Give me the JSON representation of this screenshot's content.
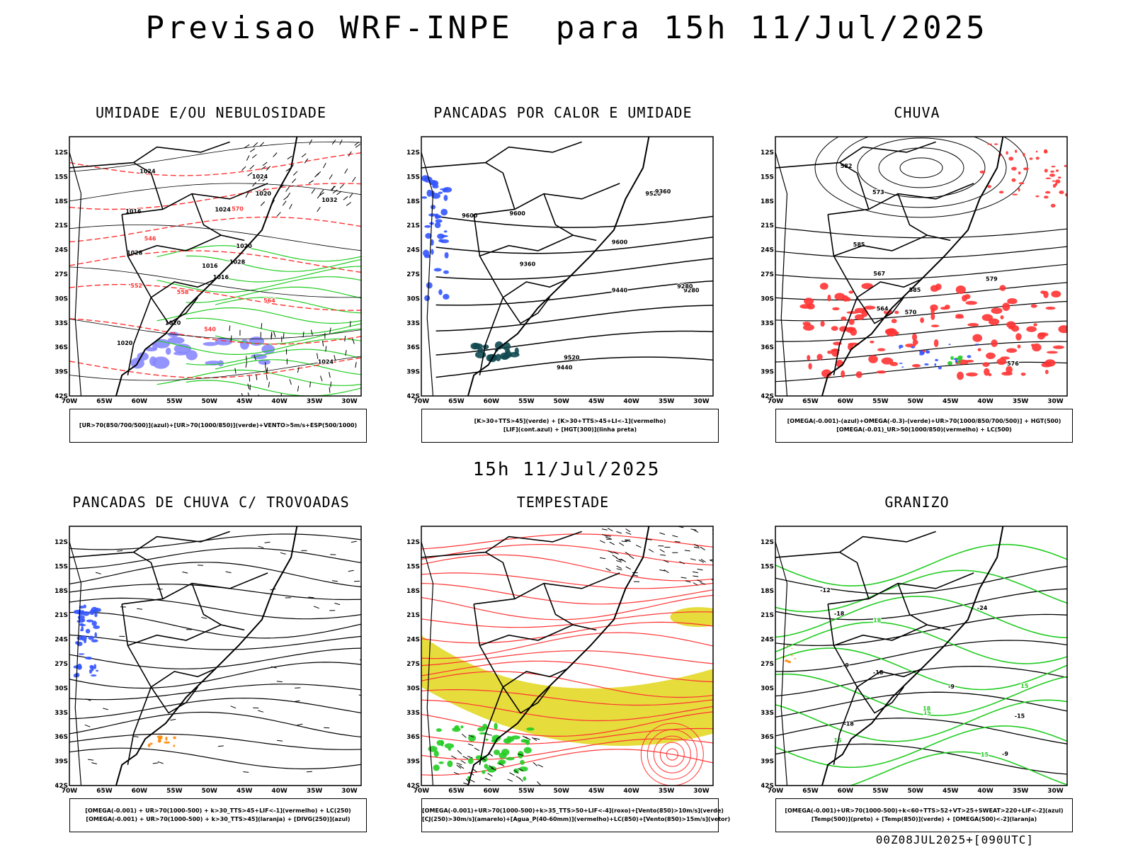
{
  "title": "Previsao WRF-INPE  para 15h 11/Jul/2025",
  "mid_title": "15h 11/Jul/2025",
  "footer": "00Z08JUL2025+[090UTC]",
  "axes": {
    "lat_labels": [
      "12S",
      "15S",
      "18S",
      "21S",
      "24S",
      "27S",
      "30S",
      "33S",
      "36S",
      "39S",
      "42S"
    ],
    "lon_labels": [
      "70W",
      "65W",
      "60W",
      "55W",
      "50W",
      "45W",
      "40W",
      "35W",
      "30W"
    ]
  },
  "colors": {
    "red": "#ff3333",
    "green": "#22cc22",
    "blue": "#3355ff",
    "yellow": "#e6dc3c",
    "orange": "#ff8800",
    "purple": "#8888ff",
    "teal": "#104850",
    "black": "#000000"
  },
  "panels": [
    {
      "title": "UMIDADE E/OU NEBULOSIDADE",
      "legend": [
        "[UR>70(850/700/500)](azul)+[UR>70(1000/850)](verde)+VENTO>5m/s+ESP(500/1000)"
      ],
      "contour_labels": [
        "1016",
        "1016",
        "1016",
        "1020",
        "1020",
        "1020",
        "1024",
        "1024",
        "1020",
        "1028",
        "1024",
        "1024",
        "1028",
        "1032",
        "570",
        "564",
        "558",
        "552",
        "546",
        "540"
      ],
      "layers": [
        "isobars",
        "thickness-red-dashed",
        "humidity-green",
        "humidity-blue",
        "wind-vectors"
      ]
    },
    {
      "title": "PANCADAS POR CALOR E UMIDADE",
      "legend": [
        "[K>30+TTS>45](verde) + [K>30+TTS>45+LI<-1](vermelho)",
        "[LIF](cont.azul) + [HGT(300)](linha preta)"
      ],
      "contour_labels": [
        "9600",
        "9600",
        "9600",
        "9520",
        "9520",
        "9440",
        "9440",
        "9360",
        "9360",
        "9280",
        "9280"
      ],
      "layers": [
        "hgt300-black",
        "lif-blue",
        "k-index-teal"
      ]
    },
    {
      "title": "CHUVA",
      "legend": [
        "[OMEGA(-0.001)-(azul)+OMEGA(-0.3)-(verde)+UR>70(1000/850/700/500)] + HGT(500)",
        "[OMEGA(-0.01)_UR>50(1000/850)(vermelho) + LC(500)"
      ],
      "contour_labels": [
        "585",
        "585",
        "582",
        "579",
        "576",
        "573",
        "570",
        "567",
        "564"
      ],
      "layers": [
        "hgt500-black",
        "rain-red",
        "omega-blue",
        "omega-green",
        "streamlines"
      ]
    },
    {
      "title": "PANCADAS DE CHUVA C/ TROVOADAS",
      "legend": [
        "[OMEGA(-0.001) + UR>70(1000-500) + k>30_TTS>45+LIF<-1](vermelho) + LC(250)",
        "[OMEGA(-0.001) + UR>70(1000-500) + k>30_TTS>45](laranja) + [DIVG(250)](azul)"
      ],
      "contour_labels": [],
      "layers": [
        "streamlines-250",
        "convection-blue",
        "convection-orange"
      ]
    },
    {
      "title": "TEMPESTADE",
      "legend": [
        "[OMEGA(-0.001)+UR>70(1000-500)+k>35_TTS>50+LIF<-4](roxo)+[Vento(850)>10m/s](verde)",
        "[CJ(250)>30m/s](amarelo)+[Agua_P(40-60mm)](vermelho)+LC(850)+[Vento(850)>15m/s](vetor)"
      ],
      "contour_labels": [],
      "layers": [
        "jet-yellow",
        "streamlines-850-red",
        "wind-green",
        "vectors"
      ]
    },
    {
      "title": "GRANIZO",
      "legend": [
        "[OMEGA(-0.001)+UR>70(1000-500)+k<60+TTS>52+VT>25+SWEAT>220+LIF<-2](azul)",
        "[Temp(500)](preto) + [Temp(850)](verde) + [OMEGA(500)<-2](laranja)"
      ],
      "contour_labels": [
        "-9",
        "-9",
        "-9",
        "-12",
        "-15",
        "-18",
        "-18",
        "-18",
        "-24",
        "15",
        "15",
        "15",
        "15",
        "18",
        "18"
      ],
      "layers": [
        "temp500-black",
        "temp850-green",
        "omega-orange"
      ]
    }
  ]
}
